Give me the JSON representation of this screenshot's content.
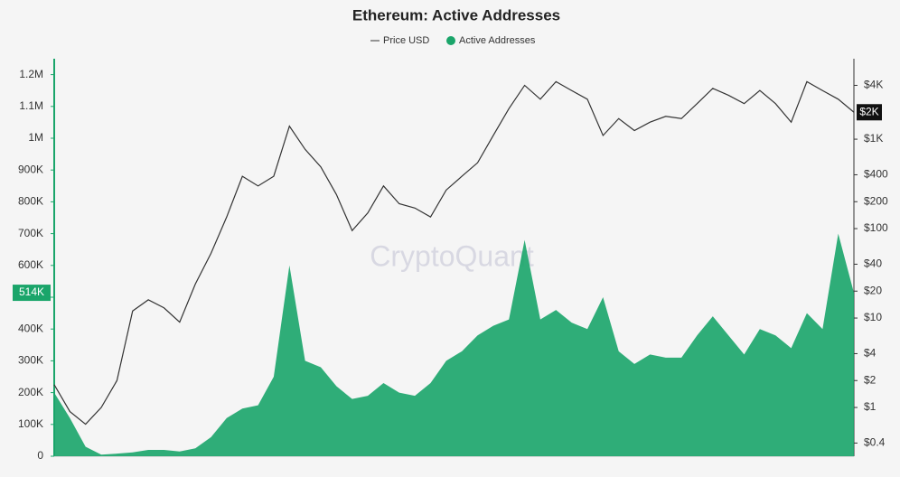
{
  "chart_data": {
    "type": "area_line",
    "title": "Ethereum: Active Addresses",
    "watermark": "CryptoQuant",
    "series": [
      {
        "name": "Price USD",
        "color": "#333333",
        "axis": "y2",
        "values": [
          1.8,
          0.9,
          0.65,
          1.0,
          2,
          12,
          16,
          13,
          9,
          24,
          53,
          135,
          385,
          300,
          385,
          1400,
          770,
          490,
          240,
          95,
          150,
          300,
          190,
          170,
          135,
          270,
          385,
          545,
          1100,
          2200,
          4000,
          2800,
          4400,
          3500,
          2800,
          1100,
          1700,
          1250,
          1550,
          1800,
          1700,
          2500,
          3700,
          3100,
          2500,
          3500,
          2500,
          1550,
          4400,
          3500,
          2800,
          2000
        ]
      },
      {
        "name": "Active Addresses",
        "color": "#1aa56a",
        "values": [
          200000,
          120000,
          30000,
          5000,
          8000,
          12000,
          20000,
          20000,
          15000,
          25000,
          60000,
          120000,
          150000,
          160000,
          250000,
          600000,
          300000,
          280000,
          220000,
          180000,
          190000,
          230000,
          200000,
          190000,
          230000,
          300000,
          330000,
          380000,
          410000,
          430000,
          680000,
          430000,
          460000,
          420000,
          400000,
          500000,
          330000,
          290000,
          320000,
          310000,
          310000,
          380000,
          440000,
          380000,
          320000,
          400000,
          380000,
          340000,
          450000,
          400000,
          700000,
          514000
        ]
      }
    ],
    "ylim": [
      0,
      1250000
    ],
    "yticks": [
      0,
      {
        "value": 100000,
        "label": "100K"
      },
      {
        "value": 200000,
        "label": "200K"
      },
      {
        "value": 300000,
        "label": "300K"
      },
      {
        "value": 400000,
        "label": "400K"
      },
      {
        "value": 500000,
        "label": "500K"
      },
      {
        "value": 600000,
        "label": "600K"
      },
      {
        "value": 700000,
        "label": "700K"
      },
      {
        "value": 800000,
        "label": "800K"
      },
      {
        "value": 900000,
        "label": "900K"
      },
      {
        "value": 1000000,
        "label": "1M"
      },
      {
        "value": 1100000,
        "label": "1.1M"
      },
      {
        "value": 1200000,
        "label": "1.2M"
      }
    ],
    "y2lim": [
      0.285,
      7940
    ],
    "y2log": true,
    "y2ticks": [
      {
        "value": 0.4,
        "label": "$0.4"
      },
      {
        "value": 1,
        "label": "$1"
      },
      {
        "value": 2,
        "label": "$2"
      },
      {
        "value": 4,
        "label": "$4"
      },
      {
        "value": 10,
        "label": "$10"
      },
      {
        "value": 20,
        "label": "$20"
      },
      {
        "value": 40,
        "label": "$40"
      },
      {
        "value": 100,
        "label": "$100"
      },
      {
        "value": 200,
        "label": "$200"
      },
      {
        "value": 400,
        "label": "$400"
      },
      {
        "value": 1000,
        "label": "$1K"
      },
      {
        "value": 4000,
        "label": "$4K"
      }
    ],
    "current_labels": [
      {
        "value": 514000,
        "label": "514K"
      },
      {
        "value": 2000,
        "label": "$2K"
      }
    ]
  }
}
